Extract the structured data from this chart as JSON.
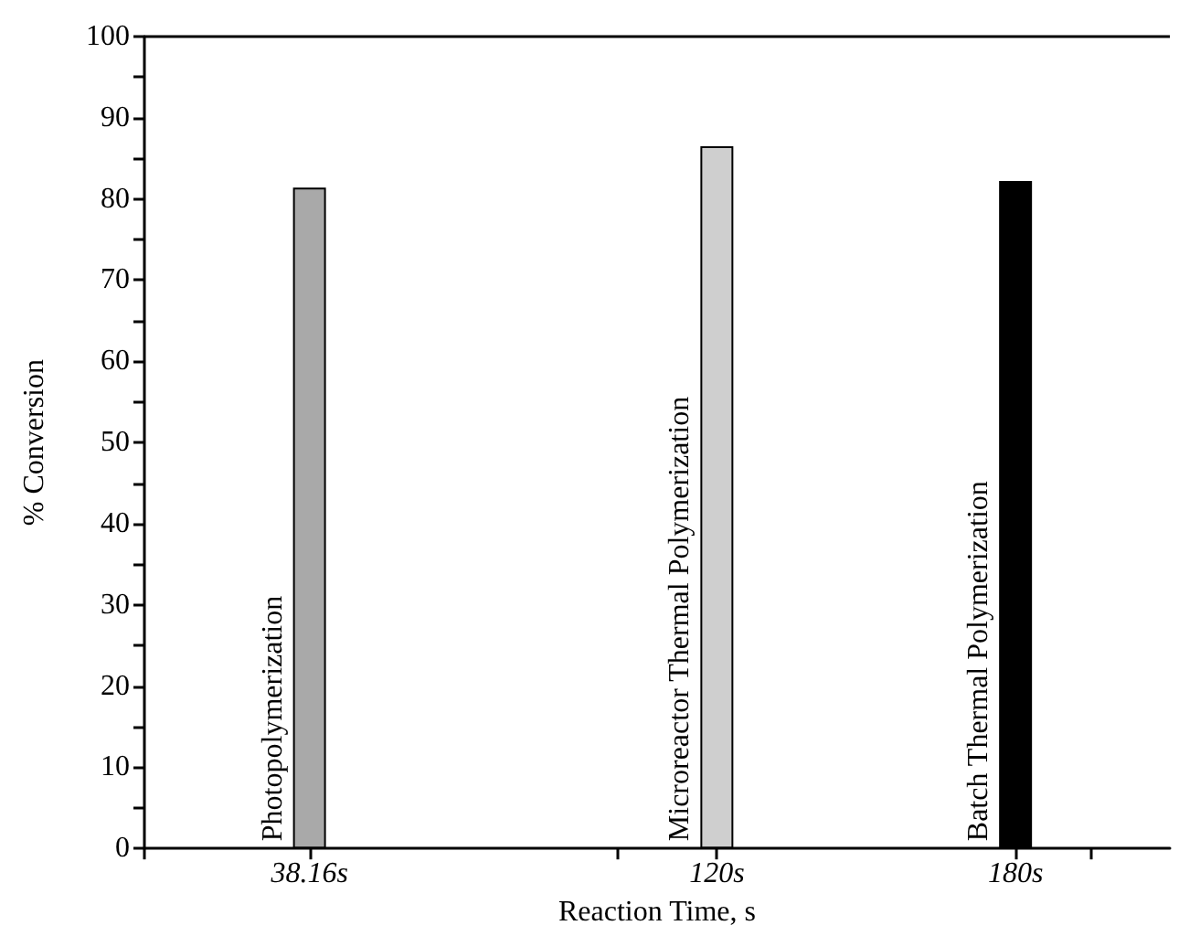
{
  "chart_data": {
    "type": "bar",
    "xlabel": "Reaction Time, s",
    "ylabel": "% Conversion",
    "x": [
      38.16,
      120,
      180
    ],
    "values": [
      81.4,
      86.5,
      82.2
    ],
    "colors": [
      "#a9a9a9",
      "#cfcfcf",
      "#000000"
    ],
    "xlim": [
      5,
      211
    ],
    "xticks": [
      {
        "value": 5,
        "label": null
      },
      {
        "value": 38.16,
        "label": "38.16s"
      },
      {
        "value": 100,
        "label": null
      },
      {
        "value": 120,
        "label": "120s"
      },
      {
        "value": 180,
        "label": "180s"
      },
      {
        "value": 195,
        "label": null
      }
    ],
    "ylim": [
      0,
      100
    ],
    "yticks": [
      0,
      {
        "value": 5,
        "label": null
      },
      10,
      {
        "value": 15,
        "label": null
      },
      20,
      {
        "value": 25,
        "label": null
      },
      30,
      {
        "value": 35,
        "label": null
      },
      40,
      {
        "value": 45,
        "label": null
      },
      50,
      {
        "value": 55,
        "label": null
      },
      60,
      {
        "value": 65,
        "label": null
      },
      70,
      {
        "value": 75,
        "label": null
      },
      80,
      {
        "value": 85,
        "label": null
      },
      90,
      {
        "value": 95,
        "label": null
      },
      100
    ],
    "annotations": [
      {
        "text": "Photopolymerization",
        "x": 38.16,
        "y": 0
      },
      {
        "text": "Microreactor Thermal Polymerization",
        "x": 120,
        "y": 0
      },
      {
        "text": "Batch Thermal Polymerization",
        "x": 180,
        "y": 0
      }
    ]
  }
}
